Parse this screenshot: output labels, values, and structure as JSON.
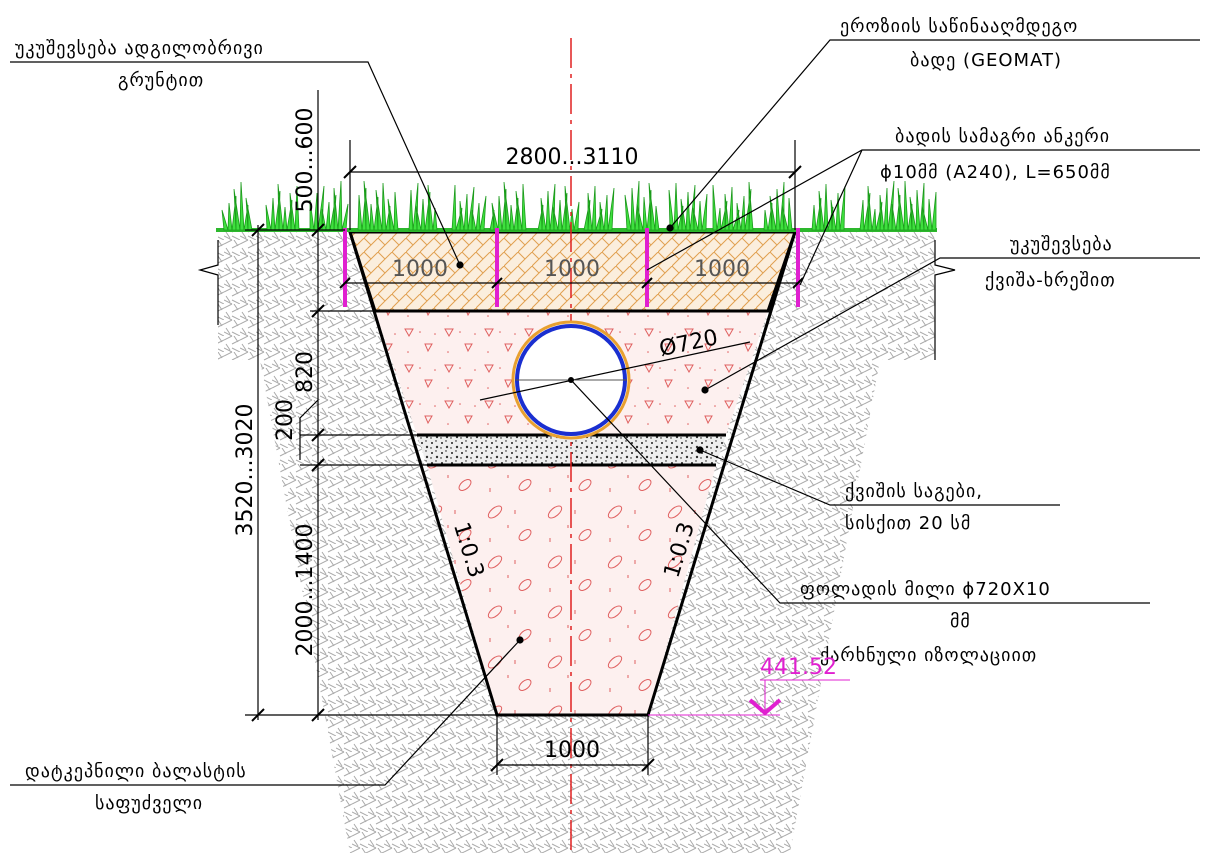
{
  "labels": {
    "backfill_local": [
      "უკუშევსება ადგილობრივი",
      "გრუნტით"
    ],
    "geomat": [
      "ეროზიის საწინააღმდეგო",
      "ბადე (GEOMAT)"
    ],
    "anchor": [
      "ბადის სამაგრი ანკერი",
      "ϕ10მმ (A240), L=650მმ"
    ],
    "backfill_sand": [
      "უკუშევსება",
      "ქვიშა-ხრეშით"
    ],
    "sand_bed": [
      "ქვიშის საგები,",
      "სისქით 20 სმ"
    ],
    "pipe": [
      "ფოლადის მილი ϕ720X10",
      "მმ",
      "ქარხნული იზოლაციით"
    ],
    "base": [
      "დატკეპნილი ბალასტის",
      "საფუძველი"
    ]
  },
  "dimensions": {
    "top_width": "2800...3110",
    "topsoil": "500...600",
    "anchor_spacing": [
      "1000",
      "1000",
      "1000"
    ],
    "pipe_diameter": "Ø720",
    "pipe_zone": "820",
    "bed": "200",
    "total_depth": "3520...3020",
    "lower_zone": "2000...1400",
    "slope_left": "1:0.3",
    "slope_right": "1:0.3",
    "elevation": "441.52",
    "bottom_width": "1000"
  }
}
